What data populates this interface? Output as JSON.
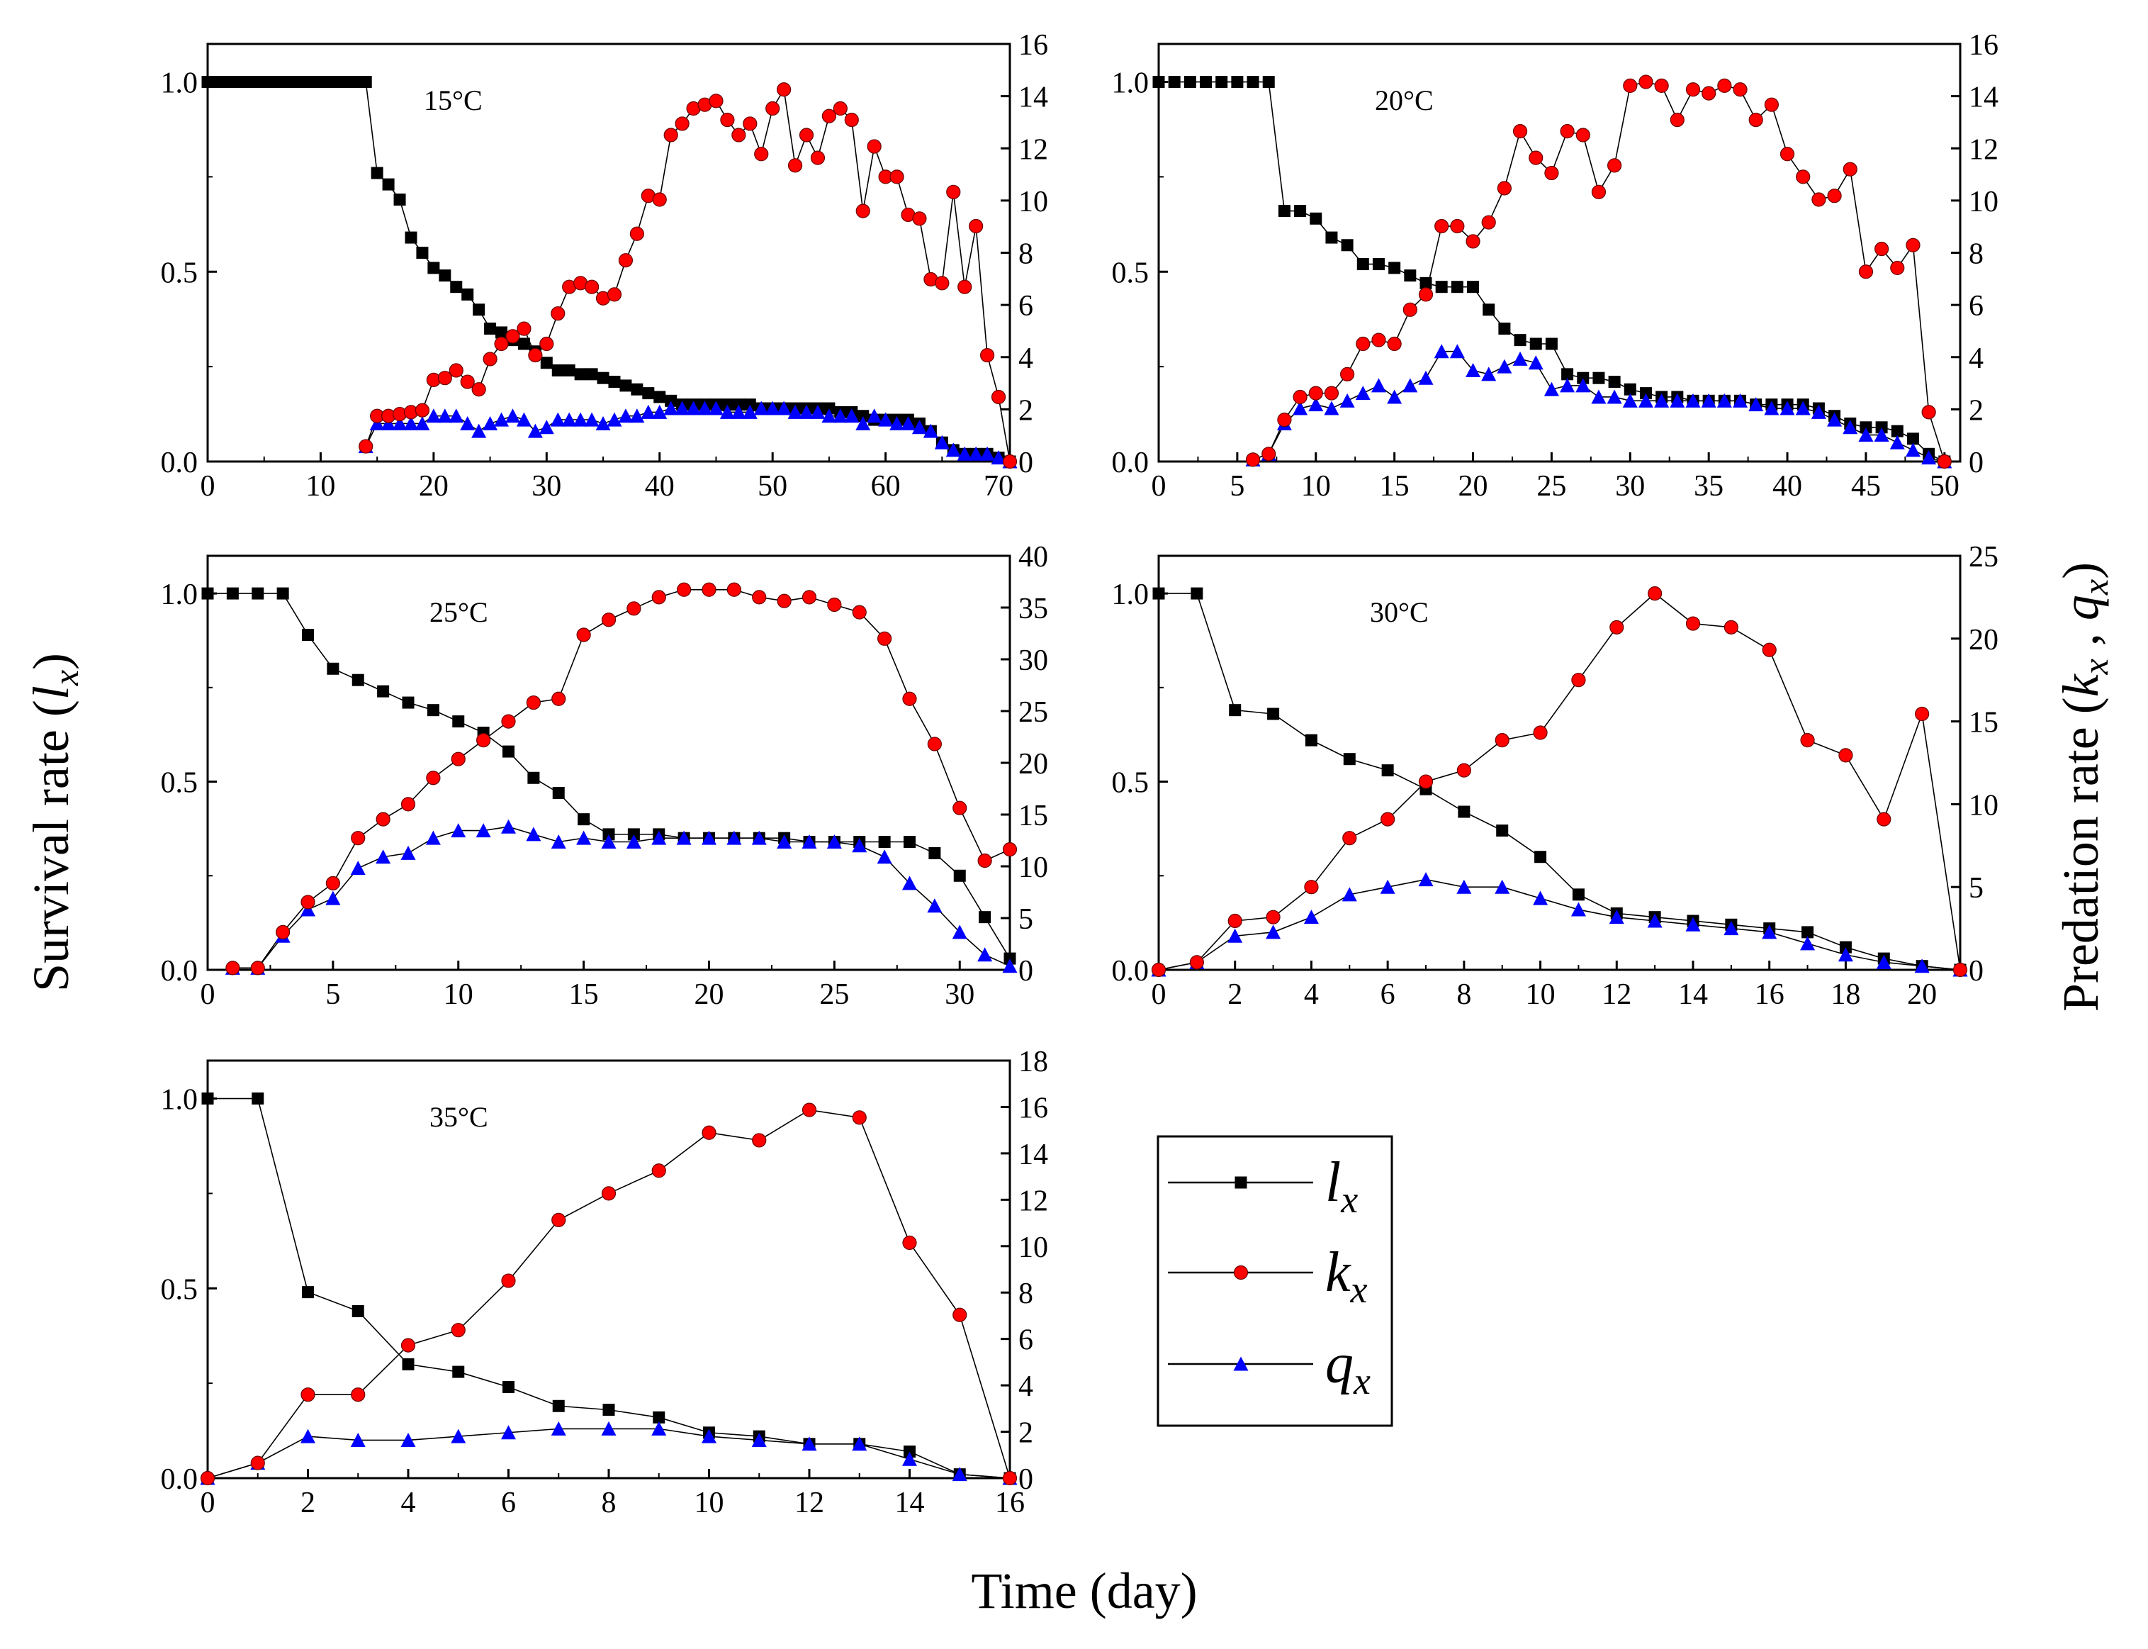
{
  "figure": {
    "ylabel_left_main": "Survival rate (",
    "ylabel_left_sym": "l",
    "ylabel_left_sub": "x",
    "ylabel_left_close": ")",
    "ylabel_right_main": "Predation rate (",
    "ylabel_right_k": "k",
    "ylabel_right_sub1": "x",
    "ylabel_right_comma": " , ",
    "ylabel_right_q": "q",
    "ylabel_right_sub2": "x",
    "ylabel_right_close": ")",
    "xlabel": "Time (day)"
  },
  "legend": [
    {
      "sym": "l",
      "sub": "x",
      "color": "#000000",
      "marker": "square"
    },
    {
      "sym": "k",
      "sub": "x",
      "color": "#ff0000",
      "marker": "circle"
    },
    {
      "sym": "q",
      "sub": "x",
      "color": "#0000ff",
      "marker": "triangle"
    }
  ],
  "colors": {
    "lx": "#000000",
    "kx": "#ff0000",
    "qx": "#0000ff",
    "line": "#000000"
  },
  "chart_data": [
    {
      "type": "line",
      "title": "15°C",
      "xlim": [
        0,
        71
      ],
      "xticks": [
        0,
        10,
        20,
        30,
        40,
        50,
        60,
        70
      ],
      "ylim_left": [
        0,
        1.1
      ],
      "yticks_left": [
        "0.0",
        "0.5",
        "1.0"
      ],
      "ylim_right": [
        0,
        16
      ],
      "yticks_right": [
        0,
        2,
        4,
        6,
        8,
        10,
        12,
        14,
        16
      ],
      "x": [
        0,
        1,
        2,
        3,
        4,
        5,
        6,
        7,
        8,
        9,
        10,
        11,
        12,
        13,
        14,
        15,
        16,
        17,
        18,
        19,
        20,
        21,
        22,
        23,
        24,
        25,
        26,
        27,
        28,
        29,
        30,
        31,
        32,
        33,
        34,
        35,
        36,
        37,
        38,
        39,
        40,
        41,
        42,
        43,
        44,
        45,
        46,
        47,
        48,
        49,
        50,
        51,
        52,
        53,
        54,
        55,
        56,
        57,
        58,
        59,
        60,
        61,
        62,
        63,
        64,
        65,
        66,
        67,
        68,
        69,
        70,
        71
      ],
      "series": [
        {
          "name": "lx",
          "axis": "left",
          "values": [
            1,
            1,
            1,
            1,
            1,
            1,
            1,
            1,
            1,
            1,
            1,
            1,
            1,
            1,
            1,
            0.76,
            0.73,
            0.69,
            0.59,
            0.55,
            0.51,
            0.49,
            0.46,
            0.44,
            0.4,
            0.35,
            0.34,
            0.32,
            0.31,
            0.29,
            0.26,
            0.24,
            0.24,
            0.23,
            0.23,
            0.22,
            0.21,
            0.2,
            0.19,
            0.18,
            0.17,
            0.16,
            0.15,
            0.15,
            0.15,
            0.15,
            0.15,
            0.15,
            0.15,
            0.14,
            0.14,
            0.14,
            0.14,
            0.14,
            0.14,
            0.14,
            0.13,
            0.13,
            0.12,
            0.11,
            0.11,
            0.11,
            0.11,
            0.1,
            0.08,
            0.05,
            0.03,
            0.02,
            0.02,
            0.02,
            0.01,
            0.0
          ]
        },
        {
          "name": "kx",
          "axis": "left",
          "values": [
            null,
            null,
            null,
            null,
            null,
            null,
            null,
            null,
            null,
            null,
            null,
            null,
            null,
            null,
            0.04,
            0.12,
            0.12,
            0.125,
            0.13,
            0.135,
            0.215,
            0.22,
            0.24,
            0.21,
            0.19,
            0.27,
            0.31,
            0.33,
            0.35,
            0.28,
            0.31,
            0.39,
            0.46,
            0.47,
            0.46,
            0.43,
            0.44,
            0.53,
            0.6,
            0.7,
            0.69,
            0.86,
            0.89,
            0.93,
            0.94,
            0.95,
            0.9,
            0.86,
            0.89,
            0.81,
            0.93,
            0.98,
            0.78,
            0.86,
            0.8,
            0.91,
            0.93,
            0.9,
            0.66,
            0.83,
            0.75,
            0.75,
            0.65,
            0.64,
            0.48,
            0.47,
            0.71,
            0.46,
            0.62,
            0.28,
            0.17,
            0.0
          ]
        },
        {
          "name": "qx",
          "axis": "left",
          "values": [
            null,
            null,
            null,
            null,
            null,
            null,
            null,
            null,
            null,
            null,
            null,
            null,
            null,
            null,
            0.04,
            0.1,
            0.1,
            0.1,
            0.1,
            0.1,
            0.12,
            0.12,
            0.12,
            0.1,
            0.08,
            0.1,
            0.11,
            0.12,
            0.11,
            0.08,
            0.09,
            0.11,
            0.11,
            0.11,
            0.11,
            0.1,
            0.11,
            0.12,
            0.12,
            0.13,
            0.13,
            0.14,
            0.14,
            0.14,
            0.14,
            0.14,
            0.13,
            0.13,
            0.13,
            0.14,
            0.14,
            0.14,
            0.13,
            0.13,
            0.13,
            0.12,
            0.12,
            0.12,
            0.1,
            0.12,
            0.11,
            0.1,
            0.1,
            0.09,
            0.08,
            0.05,
            0.03,
            0.02,
            0.02,
            0.02,
            0.01,
            0.0
          ]
        }
      ]
    },
    {
      "type": "line",
      "title": "20°C",
      "xlim": [
        0,
        51
      ],
      "xticks": [
        0,
        5,
        10,
        15,
        20,
        25,
        30,
        35,
        40,
        45,
        50
      ],
      "ylim_left": [
        0,
        1.1
      ],
      "yticks_left": [
        "0.0",
        "0.5",
        "1.0"
      ],
      "ylim_right": [
        0,
        16
      ],
      "yticks_right": [
        0,
        2,
        4,
        6,
        8,
        10,
        12,
        14,
        16
      ],
      "x": [
        0,
        1,
        2,
        3,
        4,
        5,
        6,
        7,
        8,
        9,
        10,
        11,
        12,
        13,
        14,
        15,
        16,
        17,
        18,
        19,
        20,
        21,
        22,
        23,
        24,
        25,
        26,
        27,
        28,
        29,
        30,
        31,
        32,
        33,
        34,
        35,
        36,
        37,
        38,
        39,
        40,
        41,
        42,
        43,
        44,
        45,
        46,
        47,
        48,
        49,
        50
      ],
      "series": [
        {
          "name": "lx",
          "axis": "left",
          "values": [
            1,
            1,
            1,
            1,
            1,
            1,
            1,
            1,
            0.66,
            0.66,
            0.64,
            0.59,
            0.57,
            0.52,
            0.52,
            0.51,
            0.49,
            0.47,
            0.46,
            0.46,
            0.46,
            0.4,
            0.35,
            0.32,
            0.31,
            0.31,
            0.23,
            0.22,
            0.22,
            0.21,
            0.19,
            0.18,
            0.17,
            0.17,
            0.16,
            0.16,
            0.16,
            0.16,
            0.15,
            0.15,
            0.15,
            0.15,
            0.14,
            0.12,
            0.1,
            0.09,
            0.09,
            0.08,
            0.06,
            0.02,
            0.0
          ]
        },
        {
          "name": "kx",
          "axis": "left",
          "values": [
            null,
            null,
            null,
            null,
            null,
            null,
            0.005,
            0.02,
            0.11,
            0.17,
            0.18,
            0.18,
            0.23,
            0.31,
            0.32,
            0.31,
            0.4,
            0.44,
            0.62,
            0.62,
            0.58,
            0.63,
            0.72,
            0.87,
            0.8,
            0.76,
            0.87,
            0.86,
            0.71,
            0.78,
            0.99,
            1.0,
            0.99,
            0.9,
            0.98,
            0.97,
            0.99,
            0.98,
            0.9,
            0.94,
            0.81,
            0.75,
            0.69,
            0.7,
            0.77,
            0.5,
            0.56,
            0.51,
            0.57,
            0.13,
            0.0
          ]
        },
        {
          "name": "qx",
          "axis": "left",
          "values": [
            null,
            null,
            null,
            null,
            null,
            null,
            0.005,
            0.02,
            0.1,
            0.14,
            0.15,
            0.14,
            0.16,
            0.18,
            0.2,
            0.17,
            0.2,
            0.22,
            0.29,
            0.29,
            0.24,
            0.23,
            0.25,
            0.27,
            0.26,
            0.19,
            0.2,
            0.2,
            0.17,
            0.17,
            0.16,
            0.16,
            0.16,
            0.16,
            0.16,
            0.16,
            0.16,
            0.16,
            0.15,
            0.14,
            0.14,
            0.14,
            0.13,
            0.11,
            0.09,
            0.07,
            0.07,
            0.05,
            0.03,
            0.01,
            0.0
          ]
        }
      ]
    },
    {
      "type": "line",
      "title": "25°C",
      "xlim": [
        0,
        32
      ],
      "xticks": [
        0,
        5,
        10,
        15,
        20,
        25,
        30
      ],
      "ylim_left": [
        0,
        1.1
      ],
      "yticks_left": [
        "0.0",
        "0.5",
        "1.0"
      ],
      "ylim_right": [
        0,
        40
      ],
      "yticks_right": [
        0,
        5,
        10,
        15,
        20,
        25,
        30,
        35,
        40
      ],
      "x": [
        0,
        1,
        2,
        3,
        4,
        5,
        6,
        7,
        8,
        9,
        10,
        11,
        12,
        13,
        14,
        15,
        16,
        17,
        18,
        19,
        20,
        21,
        22,
        23,
        24,
        25,
        26,
        27,
        28,
        29,
        30,
        31,
        32
      ],
      "series": [
        {
          "name": "lx",
          "axis": "left",
          "values": [
            1,
            1,
            1,
            1,
            0.89,
            0.8,
            0.77,
            0.74,
            0.71,
            0.69,
            0.66,
            0.63,
            0.58,
            0.51,
            0.47,
            0.4,
            0.36,
            0.36,
            0.36,
            0.35,
            0.35,
            0.35,
            0.35,
            0.35,
            0.34,
            0.34,
            0.34,
            0.34,
            0.34,
            0.31,
            0.25,
            0.14,
            0.03
          ]
        },
        {
          "name": "kx",
          "axis": "left",
          "values": [
            null,
            0.005,
            0.005,
            0.1,
            0.18,
            0.23,
            0.35,
            0.4,
            0.44,
            0.51,
            0.56,
            0.61,
            0.66,
            0.71,
            0.72,
            0.89,
            0.93,
            0.96,
            0.99,
            1.01,
            1.01,
            1.01,
            0.99,
            0.98,
            0.99,
            0.97,
            0.95,
            0.88,
            0.72,
            0.6,
            0.43,
            0.29,
            0.32
          ]
        },
        {
          "name": "qx",
          "axis": "left",
          "values": [
            null,
            0.005,
            0.005,
            0.09,
            0.16,
            0.19,
            0.27,
            0.3,
            0.31,
            0.35,
            0.37,
            0.37,
            0.38,
            0.36,
            0.34,
            0.35,
            0.34,
            0.34,
            0.35,
            0.35,
            0.35,
            0.35,
            0.35,
            0.34,
            0.34,
            0.34,
            0.33,
            0.3,
            0.23,
            0.17,
            0.1,
            0.04,
            0.01
          ]
        }
      ]
    },
    {
      "type": "line",
      "title": "30°C",
      "xlim": [
        0,
        21
      ],
      "xticks": [
        0,
        2,
        4,
        6,
        8,
        10,
        12,
        14,
        16,
        18,
        20
      ],
      "ylim_left": [
        0,
        1.1
      ],
      "yticks_left": [
        "0.0",
        "0.5",
        "1.0"
      ],
      "ylim_right": [
        0,
        25
      ],
      "yticks_right": [
        0,
        5,
        10,
        15,
        20,
        25
      ],
      "x": [
        0,
        1,
        2,
        3,
        4,
        5,
        6,
        7,
        8,
        9,
        10,
        11,
        12,
        13,
        14,
        15,
        16,
        17,
        18,
        19,
        20,
        21
      ],
      "series": [
        {
          "name": "lx",
          "axis": "left",
          "values": [
            1,
            1,
            0.69,
            0.68,
            0.61,
            0.56,
            0.53,
            0.48,
            0.42,
            0.37,
            0.3,
            0.2,
            0.15,
            0.14,
            0.13,
            0.12,
            0.11,
            0.1,
            0.06,
            0.03,
            0.01,
            0.0
          ]
        },
        {
          "name": "kx",
          "axis": "left",
          "values": [
            0.0,
            0.02,
            0.13,
            0.14,
            0.22,
            0.35,
            0.4,
            0.5,
            0.53,
            0.61,
            0.63,
            0.77,
            0.91,
            1.0,
            0.92,
            0.91,
            0.85,
            0.61,
            0.57,
            0.4,
            0.68,
            0.0
          ]
        },
        {
          "name": "qx",
          "axis": "left",
          "values": [
            0.0,
            0.02,
            0.09,
            0.1,
            0.14,
            0.2,
            0.22,
            0.24,
            0.22,
            0.22,
            0.19,
            0.16,
            0.14,
            0.13,
            0.12,
            0.11,
            0.1,
            0.07,
            0.04,
            0.02,
            0.01,
            0.0
          ]
        }
      ]
    },
    {
      "type": "line",
      "title": "35°C",
      "xlim": [
        0,
        16
      ],
      "xticks": [
        0,
        2,
        4,
        6,
        8,
        10,
        12,
        14,
        16
      ],
      "ylim_left": [
        0,
        1.1
      ],
      "yticks_left": [
        "0.0",
        "0.5",
        "1.0"
      ],
      "ylim_right": [
        0,
        18
      ],
      "yticks_right": [
        0,
        2,
        4,
        6,
        8,
        10,
        12,
        14,
        16,
        18
      ],
      "x": [
        0,
        1,
        2,
        3,
        4,
        5,
        6,
        7,
        8,
        9,
        10,
        11,
        12,
        13,
        14,
        15,
        16
      ],
      "series": [
        {
          "name": "lx",
          "axis": "left",
          "values": [
            1,
            1,
            0.49,
            0.44,
            0.3,
            0.28,
            0.24,
            0.19,
            0.18,
            0.16,
            0.12,
            0.11,
            0.09,
            0.09,
            0.07,
            0.01,
            0.0
          ]
        },
        {
          "name": "kx",
          "axis": "left",
          "values": [
            0.0,
            0.04,
            0.22,
            0.22,
            0.35,
            0.39,
            0.52,
            0.68,
            0.75,
            0.81,
            0.91,
            0.89,
            0.97,
            0.95,
            0.62,
            0.43,
            0.0
          ]
        },
        {
          "name": "qx",
          "axis": "left",
          "values": [
            0.0,
            0.04,
            0.11,
            0.1,
            0.1,
            0.11,
            0.12,
            0.13,
            0.13,
            0.13,
            0.11,
            0.1,
            0.09,
            0.09,
            0.05,
            0.01,
            0.0
          ]
        }
      ]
    }
  ]
}
